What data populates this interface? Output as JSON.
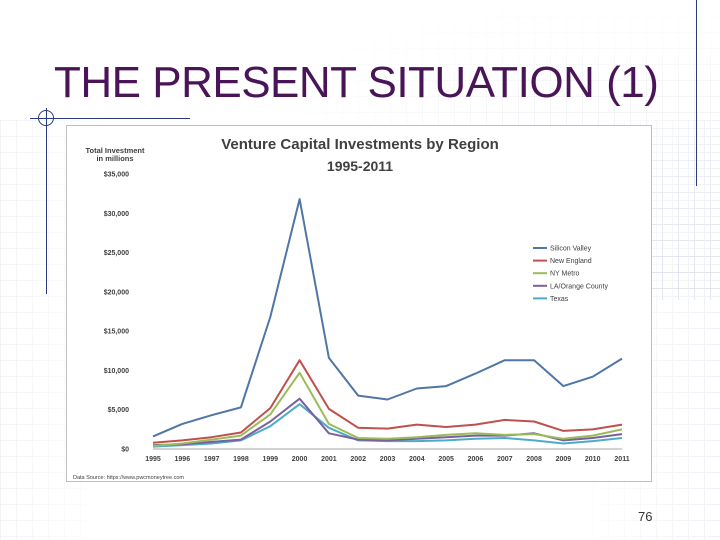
{
  "slide": {
    "title": "THE PRESENT SITUATION (1)",
    "page_number": "76"
  },
  "chart_data": {
    "type": "line",
    "title": "Venture Capital Investments by Region",
    "subtitle": "1995-2011",
    "ylabel": "Total Investment in millions",
    "ylabel_line1": "Total Investment",
    "ylabel_line2": "in millions",
    "xlabel": "",
    "source": "Data Source: https://www.pwcmoneytree.com",
    "ylim": [
      0,
      35000
    ],
    "y_ticks": [
      {
        "value": 0,
        "label": "$0"
      },
      {
        "value": 5000,
        "label": "$5,000"
      },
      {
        "value": 10000,
        "label": "$10,000"
      },
      {
        "value": 15000,
        "label": "$15,000"
      },
      {
        "value": 20000,
        "label": "$20,000"
      },
      {
        "value": 25000,
        "label": "$25,000"
      },
      {
        "value": 30000,
        "label": "$30,000"
      },
      {
        "value": 35000,
        "label": "$35,000"
      }
    ],
    "categories": [
      "1995",
      "1996",
      "1997",
      "1998",
      "1999",
      "2000",
      "2001",
      "2002",
      "2003",
      "2004",
      "2005",
      "2006",
      "2007",
      "2008",
      "2009",
      "2010",
      "2011"
    ],
    "legend_position": "right",
    "series": [
      {
        "name": "Silicon Valley",
        "color": "#4f76a5",
        "values": [
          1600,
          3200,
          4300,
          5300,
          16800,
          31800,
          11600,
          6800,
          6300,
          7700,
          8000,
          9600,
          11300,
          11300,
          8000,
          9200,
          11500
        ]
      },
      {
        "name": "New England",
        "color": "#c0504d",
        "values": [
          800,
          1100,
          1500,
          2100,
          5200,
          11300,
          5100,
          2700,
          2600,
          3100,
          2800,
          3100,
          3700,
          3500,
          2300,
          2500,
          3100
        ]
      },
      {
        "name": "NY Metro",
        "color": "#9bbb59",
        "values": [
          400,
          700,
          1200,
          1700,
          4400,
          9700,
          3200,
          1400,
          1300,
          1500,
          1800,
          2000,
          1800,
          1900,
          1300,
          1700,
          2500
        ]
      },
      {
        "name": "LA/Orange County",
        "color": "#7b5fa0",
        "values": [
          500,
          600,
          900,
          1200,
          3500,
          6400,
          2000,
          1200,
          1100,
          1300,
          1500,
          1700,
          1700,
          2000,
          1100,
          1400,
          1900
        ]
      },
      {
        "name": "Texas",
        "color": "#4bacc6",
        "values": [
          300,
          500,
          700,
          1100,
          2900,
          5700,
          2700,
          1100,
          1000,
          1000,
          1100,
          1300,
          1400,
          1100,
          700,
          1000,
          1400
        ]
      }
    ]
  }
}
